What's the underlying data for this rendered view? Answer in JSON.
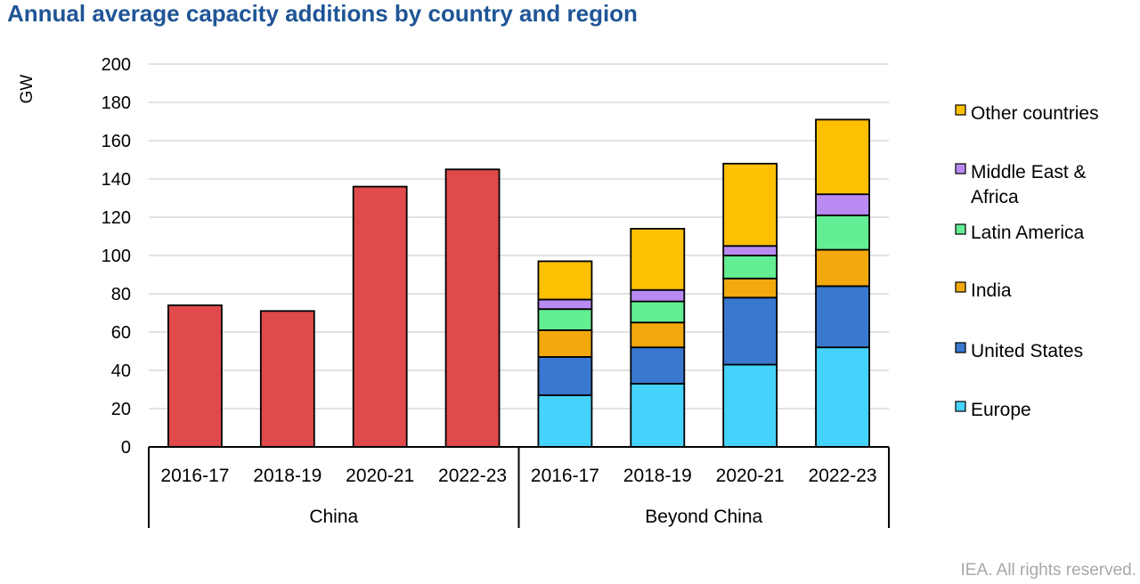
{
  "title": "Annual average capacity additions by country and region",
  "footer": "IEA. All rights reserved.",
  "colors": {
    "china": "#e04a4a",
    "Europe": "#45d3fb",
    "United States": "#3a78d0",
    "India": "#f1a90d",
    "Latin America": "#63ee94",
    "Middle East & Africa": "#b98bf2",
    "Other countries": "#fdc003"
  },
  "chart_data": {
    "type": "bar",
    "ylabel": "GW",
    "ylim": [
      0,
      200
    ],
    "yticks": [
      0,
      20,
      40,
      60,
      80,
      100,
      120,
      140,
      160,
      180,
      200
    ],
    "grid": true,
    "legend_placement": "right",
    "groups": [
      {
        "label": "China",
        "categories": [
          "2016-17",
          "2018-19",
          "2020-21",
          "2022-23"
        ],
        "values": [
          74,
          71,
          136,
          145
        ]
      },
      {
        "label": "Beyond China",
        "categories": [
          "2016-17",
          "2018-19",
          "2020-21",
          "2022-23"
        ],
        "series": [
          {
            "name": "Europe",
            "values": [
              27,
              33,
              43,
              52
            ]
          },
          {
            "name": "United States",
            "values": [
              20,
              19,
              35,
              32
            ]
          },
          {
            "name": "India",
            "values": [
              14,
              13,
              10,
              19
            ]
          },
          {
            "name": "Latin America",
            "values": [
              11,
              11,
              12,
              18
            ]
          },
          {
            "name": "Middle East & Africa",
            "values": [
              5,
              6,
              5,
              11
            ]
          },
          {
            "name": "Other countries",
            "values": [
              20,
              32,
              43,
              39
            ]
          }
        ]
      }
    ],
    "legend": [
      "Other countries",
      "Middle East & Africa",
      "Latin America",
      "India",
      "United States",
      "Europe"
    ]
  }
}
